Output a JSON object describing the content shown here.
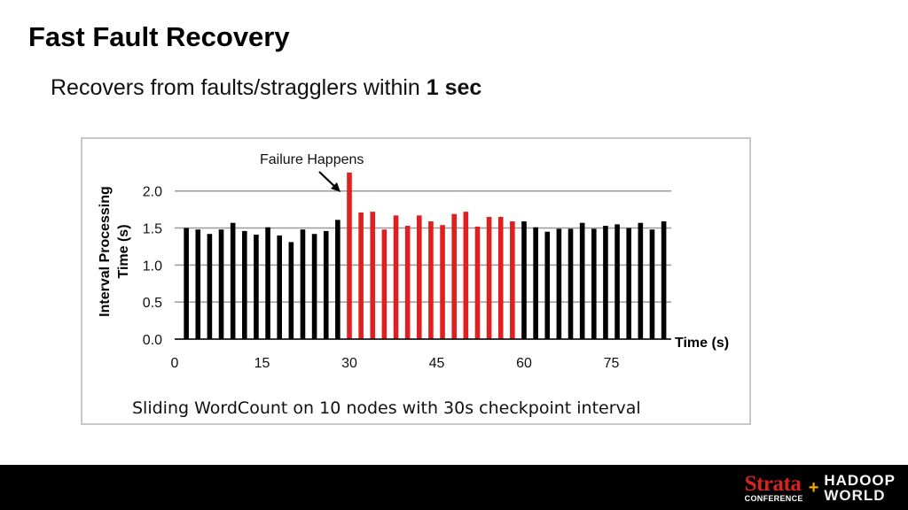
{
  "slide": {
    "title": "Fast Fault Recovery",
    "subtitle_prefix": "Recovers from faults/stragglers within ",
    "subtitle_bold": "1 sec"
  },
  "footer": {
    "logo_strata": "Strata",
    "logo_conference": "CONFERENCE",
    "logo_plus": "+",
    "logo_hadoop": "HADOOP",
    "logo_world": "WORLD"
  },
  "colors": {
    "normal_bar": "#000000",
    "recovery_bar": "#e02020",
    "footer_bg": "#000000",
    "strata_red": "#d9231f"
  },
  "chart_data": {
    "type": "bar",
    "title": "",
    "annotation": "Failure Happens",
    "caption": "Sliding WordCount on 10 nodes with 30s checkpoint interval",
    "xlabel": "Time (s)",
    "ylabel": "Interval Processing Time (s)",
    "ylim": [
      0,
      2.2
    ],
    "xlim": [
      0,
      84
    ],
    "yticks": [
      "0.0",
      "0.5",
      "1.0",
      "1.5",
      "2.0"
    ],
    "xticks": [
      "0",
      "15",
      "30",
      "45",
      "60",
      "75"
    ],
    "grid": "horizontal",
    "series": [
      {
        "color": "#000000",
        "x": [
          2,
          4,
          6,
          8,
          10,
          12,
          14,
          16,
          18,
          20,
          22,
          24,
          26,
          28,
          60,
          62,
          64,
          66,
          68,
          70,
          72,
          74,
          76,
          78,
          80,
          82,
          84
        ],
        "values": [
          1.5,
          1.48,
          1.42,
          1.48,
          1.57,
          1.46,
          1.41,
          1.51,
          1.4,
          1.31,
          1.48,
          1.42,
          1.46,
          1.61,
          1.59,
          1.51,
          1.45,
          1.49,
          1.49,
          1.57,
          1.49,
          1.53,
          1.55,
          1.5,
          1.57,
          1.48,
          1.59
        ]
      },
      {
        "color": "#e02020",
        "x": [
          30,
          32,
          34,
          36,
          38,
          40,
          42,
          44,
          46,
          48,
          50,
          52,
          54,
          56,
          58
        ],
        "values": [
          2.25,
          1.71,
          1.72,
          1.48,
          1.67,
          1.53,
          1.67,
          1.59,
          1.54,
          1.69,
          1.72,
          1.52,
          1.65,
          1.65,
          1.59
        ]
      }
    ]
  }
}
